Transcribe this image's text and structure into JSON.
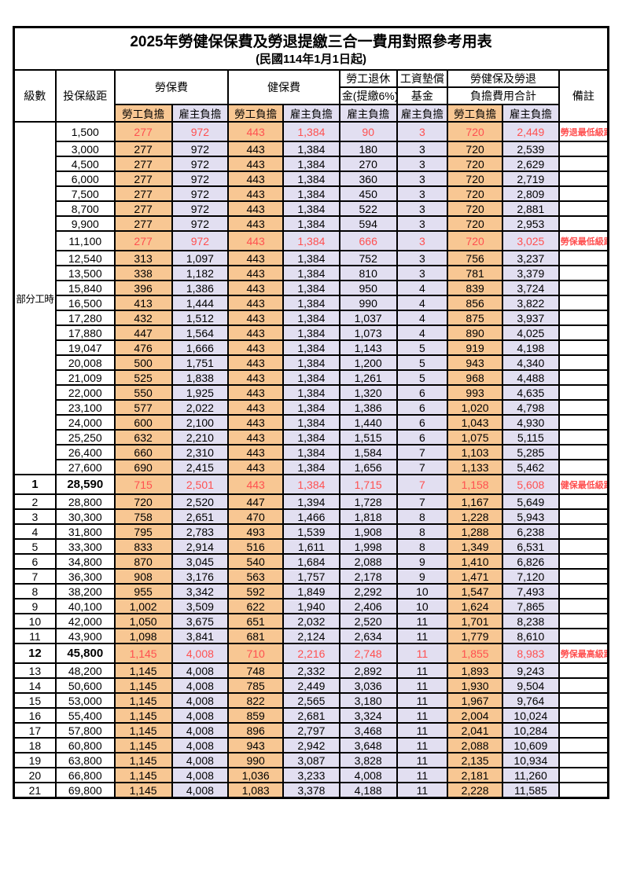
{
  "page": {
    "title": "2025年勞健保保費及勞退提繳三合一費用對照參考用表",
    "subtitle": "(民國114年1月1日起)"
  },
  "header": {
    "level": "級數",
    "bracket": "投保級距",
    "labor_insurance": "勞保費",
    "health_insurance": "健保費",
    "pension_line1": "勞工退休",
    "pension_line2": "金(提繳6%)",
    "wage_fund_line1": "工資墊償",
    "wage_fund_line2": "基金",
    "total_line1": "勞健保及勞退",
    "total_line2": "負擔費用合計",
    "remark": "備註",
    "employee": "勞工負擔",
    "employer": "雇主負擔"
  },
  "part_time_label": "部分工時",
  "part_time_rowspan": 23,
  "colors": {
    "employee_bg": "#F8C793",
    "employer_bg": "#E2DFF1",
    "highlight_text": "#FF5050",
    "border": "#000000"
  },
  "rows": [
    {
      "level": "",
      "bracket": "1,500",
      "fees": [
        "277",
        "972",
        "443",
        "1,384",
        "90",
        "3",
        "720",
        "2,449"
      ],
      "remark": "勞退最低級距",
      "red": true,
      "boldId": false,
      "hl": true
    },
    {
      "level": "",
      "bracket": "3,000",
      "fees": [
        "277",
        "972",
        "443",
        "1,384",
        "180",
        "3",
        "720",
        "2,539"
      ],
      "remark": "",
      "red": false,
      "boldId": false,
      "hl": false
    },
    {
      "level": "",
      "bracket": "4,500",
      "fees": [
        "277",
        "972",
        "443",
        "1,384",
        "270",
        "3",
        "720",
        "2,629"
      ],
      "remark": "",
      "red": false,
      "boldId": false,
      "hl": false
    },
    {
      "level": "",
      "bracket": "6,000",
      "fees": [
        "277",
        "972",
        "443",
        "1,384",
        "360",
        "3",
        "720",
        "2,719"
      ],
      "remark": "",
      "red": false,
      "boldId": false,
      "hl": false
    },
    {
      "level": "",
      "bracket": "7,500",
      "fees": [
        "277",
        "972",
        "443",
        "1,384",
        "450",
        "3",
        "720",
        "2,809"
      ],
      "remark": "",
      "red": false,
      "boldId": false,
      "hl": false
    },
    {
      "level": "",
      "bracket": "8,700",
      "fees": [
        "277",
        "972",
        "443",
        "1,384",
        "522",
        "3",
        "720",
        "2,881"
      ],
      "remark": "",
      "red": false,
      "boldId": false,
      "hl": false
    },
    {
      "level": "",
      "bracket": "9,900",
      "fees": [
        "277",
        "972",
        "443",
        "1,384",
        "594",
        "3",
        "720",
        "2,953"
      ],
      "remark": "",
      "red": false,
      "boldId": false,
      "hl": false
    },
    {
      "level": "",
      "bracket": "11,100",
      "fees": [
        "277",
        "972",
        "443",
        "1,384",
        "666",
        "3",
        "720",
        "3,025"
      ],
      "remark": "勞保最低級距",
      "red": true,
      "boldId": false,
      "hl": true
    },
    {
      "level": "",
      "bracket": "12,540",
      "fees": [
        "313",
        "1,097",
        "443",
        "1,384",
        "752",
        "3",
        "756",
        "3,237"
      ],
      "remark": "",
      "red": false,
      "boldId": false,
      "hl": false
    },
    {
      "level": "",
      "bracket": "13,500",
      "fees": [
        "338",
        "1,182",
        "443",
        "1,384",
        "810",
        "3",
        "781",
        "3,379"
      ],
      "remark": "",
      "red": false,
      "boldId": false,
      "hl": false
    },
    {
      "level": "",
      "bracket": "15,840",
      "fees": [
        "396",
        "1,386",
        "443",
        "1,384",
        "950",
        "4",
        "839",
        "3,724"
      ],
      "remark": "",
      "red": false,
      "boldId": false,
      "hl": false
    },
    {
      "level": "",
      "bracket": "16,500",
      "fees": [
        "413",
        "1,444",
        "443",
        "1,384",
        "990",
        "4",
        "856",
        "3,822"
      ],
      "remark": "",
      "red": false,
      "boldId": false,
      "hl": false
    },
    {
      "level": "",
      "bracket": "17,280",
      "fees": [
        "432",
        "1,512",
        "443",
        "1,384",
        "1,037",
        "4",
        "875",
        "3,937"
      ],
      "remark": "",
      "red": false,
      "boldId": false,
      "hl": false
    },
    {
      "level": "",
      "bracket": "17,880",
      "fees": [
        "447",
        "1,564",
        "443",
        "1,384",
        "1,073",
        "4",
        "890",
        "4,025"
      ],
      "remark": "",
      "red": false,
      "boldId": false,
      "hl": false
    },
    {
      "level": "",
      "bracket": "19,047",
      "fees": [
        "476",
        "1,666",
        "443",
        "1,384",
        "1,143",
        "5",
        "919",
        "4,198"
      ],
      "remark": "",
      "red": false,
      "boldId": false,
      "hl": false
    },
    {
      "level": "",
      "bracket": "20,008",
      "fees": [
        "500",
        "1,751",
        "443",
        "1,384",
        "1,200",
        "5",
        "943",
        "4,340"
      ],
      "remark": "",
      "red": false,
      "boldId": false,
      "hl": false
    },
    {
      "level": "",
      "bracket": "21,009",
      "fees": [
        "525",
        "1,838",
        "443",
        "1,384",
        "1,261",
        "5",
        "968",
        "4,488"
      ],
      "remark": "",
      "red": false,
      "boldId": false,
      "hl": false
    },
    {
      "level": "",
      "bracket": "22,000",
      "fees": [
        "550",
        "1,925",
        "443",
        "1,384",
        "1,320",
        "6",
        "993",
        "4,635"
      ],
      "remark": "",
      "red": false,
      "boldId": false,
      "hl": false
    },
    {
      "level": "",
      "bracket": "23,100",
      "fees": [
        "577",
        "2,022",
        "443",
        "1,384",
        "1,386",
        "6",
        "1,020",
        "4,798"
      ],
      "remark": "",
      "red": false,
      "boldId": false,
      "hl": false
    },
    {
      "level": "",
      "bracket": "24,000",
      "fees": [
        "600",
        "2,100",
        "443",
        "1,384",
        "1,440",
        "6",
        "1,043",
        "4,930"
      ],
      "remark": "",
      "red": false,
      "boldId": false,
      "hl": false
    },
    {
      "level": "",
      "bracket": "25,250",
      "fees": [
        "632",
        "2,210",
        "443",
        "1,384",
        "1,515",
        "6",
        "1,075",
        "5,115"
      ],
      "remark": "",
      "red": false,
      "boldId": false,
      "hl": false
    },
    {
      "level": "",
      "bracket": "26,400",
      "fees": [
        "660",
        "2,310",
        "443",
        "1,384",
        "1,584",
        "7",
        "1,103",
        "5,285"
      ],
      "remark": "",
      "red": false,
      "boldId": false,
      "hl": false
    },
    {
      "level": "",
      "bracket": "27,600",
      "fees": [
        "690",
        "2,415",
        "443",
        "1,384",
        "1,656",
        "7",
        "1,133",
        "5,462"
      ],
      "remark": "",
      "red": false,
      "boldId": false,
      "hl": false
    },
    {
      "level": "1",
      "bracket": "28,590",
      "fees": [
        "715",
        "2,501",
        "443",
        "1,384",
        "1,715",
        "7",
        "1,158",
        "5,608"
      ],
      "remark": "健保最低級距",
      "red": true,
      "boldId": true,
      "hl": true
    },
    {
      "level": "2",
      "bracket": "28,800",
      "fees": [
        "720",
        "2,520",
        "447",
        "1,394",
        "1,728",
        "7",
        "1,167",
        "5,649"
      ],
      "remark": "",
      "red": false,
      "boldId": false,
      "hl": false
    },
    {
      "level": "3",
      "bracket": "30,300",
      "fees": [
        "758",
        "2,651",
        "470",
        "1,466",
        "1,818",
        "8",
        "1,228",
        "5,943"
      ],
      "remark": "",
      "red": false,
      "boldId": false,
      "hl": false
    },
    {
      "level": "4",
      "bracket": "31,800",
      "fees": [
        "795",
        "2,783",
        "493",
        "1,539",
        "1,908",
        "8",
        "1,288",
        "6,238"
      ],
      "remark": "",
      "red": false,
      "boldId": false,
      "hl": false
    },
    {
      "level": "5",
      "bracket": "33,300",
      "fees": [
        "833",
        "2,914",
        "516",
        "1,611",
        "1,998",
        "8",
        "1,349",
        "6,531"
      ],
      "remark": "",
      "red": false,
      "boldId": false,
      "hl": false
    },
    {
      "level": "6",
      "bracket": "34,800",
      "fees": [
        "870",
        "3,045",
        "540",
        "1,684",
        "2,088",
        "9",
        "1,410",
        "6,826"
      ],
      "remark": "",
      "red": false,
      "boldId": false,
      "hl": false
    },
    {
      "level": "7",
      "bracket": "36,300",
      "fees": [
        "908",
        "3,176",
        "563",
        "1,757",
        "2,178",
        "9",
        "1,471",
        "7,120"
      ],
      "remark": "",
      "red": false,
      "boldId": false,
      "hl": false
    },
    {
      "level": "8",
      "bracket": "38,200",
      "fees": [
        "955",
        "3,342",
        "592",
        "1,849",
        "2,292",
        "10",
        "1,547",
        "7,493"
      ],
      "remark": "",
      "red": false,
      "boldId": false,
      "hl": false
    },
    {
      "level": "9",
      "bracket": "40,100",
      "fees": [
        "1,002",
        "3,509",
        "622",
        "1,940",
        "2,406",
        "10",
        "1,624",
        "7,865"
      ],
      "remark": "",
      "red": false,
      "boldId": false,
      "hl": false
    },
    {
      "level": "10",
      "bracket": "42,000",
      "fees": [
        "1,050",
        "3,675",
        "651",
        "2,032",
        "2,520",
        "11",
        "1,701",
        "8,238"
      ],
      "remark": "",
      "red": false,
      "boldId": false,
      "hl": false
    },
    {
      "level": "11",
      "bracket": "43,900",
      "fees": [
        "1,098",
        "3,841",
        "681",
        "2,124",
        "2,634",
        "11",
        "1,779",
        "8,610"
      ],
      "remark": "",
      "red": false,
      "boldId": false,
      "hl": false
    },
    {
      "level": "12",
      "bracket": "45,800",
      "fees": [
        "1,145",
        "4,008",
        "710",
        "2,216",
        "2,748",
        "11",
        "1,855",
        "8,983"
      ],
      "remark": "勞保最高級距",
      "red": true,
      "boldId": true,
      "hl": true
    },
    {
      "level": "13",
      "bracket": "48,200",
      "fees": [
        "1,145",
        "4,008",
        "748",
        "2,332",
        "2,892",
        "11",
        "1,893",
        "9,243"
      ],
      "remark": "",
      "red": false,
      "boldId": false,
      "hl": false
    },
    {
      "level": "14",
      "bracket": "50,600",
      "fees": [
        "1,145",
        "4,008",
        "785",
        "2,449",
        "3,036",
        "11",
        "1,930",
        "9,504"
      ],
      "remark": "",
      "red": false,
      "boldId": false,
      "hl": false
    },
    {
      "level": "15",
      "bracket": "53,000",
      "fees": [
        "1,145",
        "4,008",
        "822",
        "2,565",
        "3,180",
        "11",
        "1,967",
        "9,764"
      ],
      "remark": "",
      "red": false,
      "boldId": false,
      "hl": false
    },
    {
      "level": "16",
      "bracket": "55,400",
      "fees": [
        "1,145",
        "4,008",
        "859",
        "2,681",
        "3,324",
        "11",
        "2,004",
        "10,024"
      ],
      "remark": "",
      "red": false,
      "boldId": false,
      "hl": false
    },
    {
      "level": "17",
      "bracket": "57,800",
      "fees": [
        "1,145",
        "4,008",
        "896",
        "2,797",
        "3,468",
        "11",
        "2,041",
        "10,284"
      ],
      "remark": "",
      "red": false,
      "boldId": false,
      "hl": false
    },
    {
      "level": "18",
      "bracket": "60,800",
      "fees": [
        "1,145",
        "4,008",
        "943",
        "2,942",
        "3,648",
        "11",
        "2,088",
        "10,609"
      ],
      "remark": "",
      "red": false,
      "boldId": false,
      "hl": false
    },
    {
      "level": "19",
      "bracket": "63,800",
      "fees": [
        "1,145",
        "4,008",
        "990",
        "3,087",
        "3,828",
        "11",
        "2,135",
        "10,934"
      ],
      "remark": "",
      "red": false,
      "boldId": false,
      "hl": false
    },
    {
      "level": "20",
      "bracket": "66,800",
      "fees": [
        "1,145",
        "4,008",
        "1,036",
        "3,233",
        "4,008",
        "11",
        "2,181",
        "11,260"
      ],
      "remark": "",
      "red": false,
      "boldId": false,
      "hl": false
    },
    {
      "level": "21",
      "bracket": "69,800",
      "fees": [
        "1,145",
        "4,008",
        "1,083",
        "3,378",
        "4,188",
        "11",
        "2,228",
        "11,585"
      ],
      "remark": "",
      "red": false,
      "boldId": false,
      "hl": false
    }
  ]
}
